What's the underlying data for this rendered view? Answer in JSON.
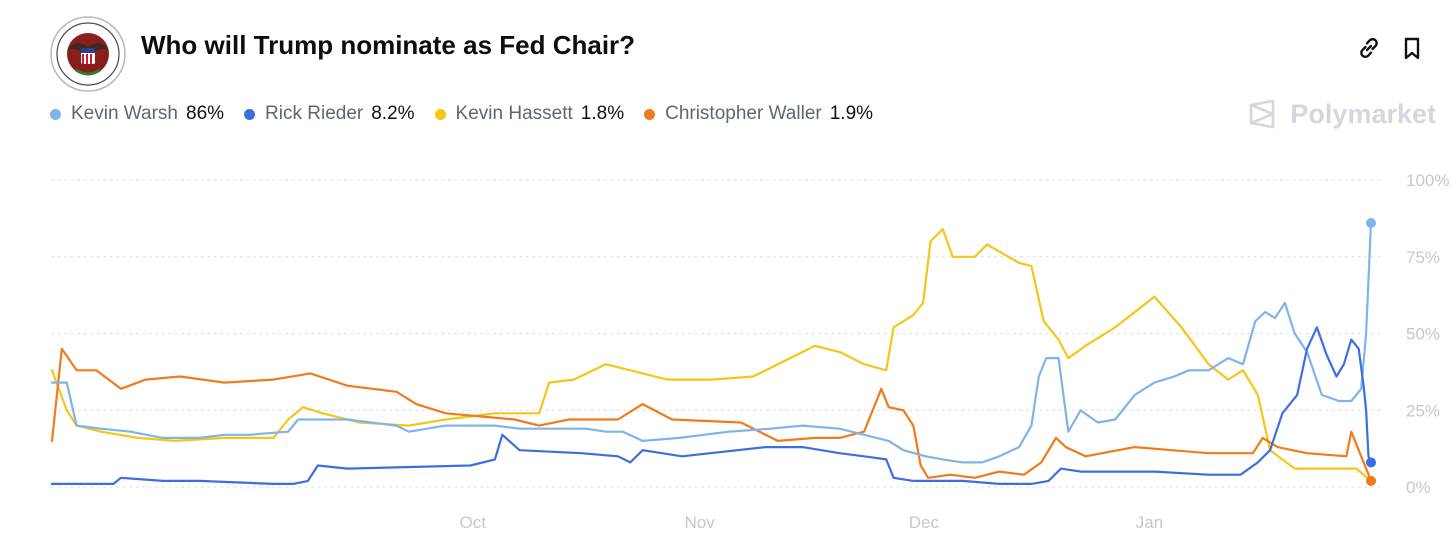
{
  "header": {
    "title": "Who will Trump nominate as Fed Chair?",
    "logo": "federal-reserve-seal",
    "icons": [
      "link-icon",
      "bookmark-icon"
    ]
  },
  "brand": {
    "name": "Polymarket",
    "icon": "polymarket-logo-icon"
  },
  "chart_data": {
    "type": "line",
    "title": "Who will Trump nominate as Fed Chair?",
    "x_ticks": [
      "Oct",
      "Nov",
      "Dec",
      "Jan"
    ],
    "y_ticks": [
      "100%",
      "75%",
      "50%",
      "25%",
      "0%"
    ],
    "ylim": [
      0,
      100
    ],
    "grid": true,
    "legend_position": "top-left",
    "series": [
      {
        "name": "Kevin Warsh",
        "value_label": "86%",
        "color": "#7fb4ea",
        "points": [
          [
            0,
            34
          ],
          [
            6,
            34
          ],
          [
            10,
            20
          ],
          [
            20,
            19
          ],
          [
            32,
            18
          ],
          [
            45,
            16
          ],
          [
            60,
            16
          ],
          [
            70,
            17
          ],
          [
            80,
            17
          ],
          [
            96,
            18
          ],
          [
            100,
            22
          ],
          [
            120,
            22
          ],
          [
            140,
            20
          ],
          [
            145,
            18
          ],
          [
            160,
            20
          ],
          [
            180,
            20
          ],
          [
            190,
            19
          ],
          [
            205,
            19
          ],
          [
            217,
            19
          ],
          [
            225,
            18
          ],
          [
            232,
            18
          ],
          [
            240,
            15
          ],
          [
            255,
            16
          ],
          [
            275,
            18
          ],
          [
            292,
            19
          ],
          [
            305,
            20
          ],
          [
            320,
            19
          ],
          [
            330,
            17
          ],
          [
            340,
            15
          ],
          [
            346,
            12
          ],
          [
            355,
            10
          ],
          [
            362,
            9
          ],
          [
            370,
            8
          ],
          [
            378,
            8
          ],
          [
            385,
            10
          ],
          [
            393,
            13
          ],
          [
            398,
            20
          ],
          [
            401,
            36
          ],
          [
            404,
            42
          ],
          [
            409,
            42
          ],
          [
            413,
            18
          ],
          [
            418,
            25
          ],
          [
            425,
            21
          ],
          [
            432,
            22
          ],
          [
            440,
            30
          ],
          [
            448,
            34
          ],
          [
            456,
            36
          ],
          [
            462,
            38
          ],
          [
            470,
            38
          ],
          [
            478,
            42
          ],
          [
            484,
            40
          ],
          [
            489,
            54
          ],
          [
            493,
            57
          ],
          [
            497,
            55
          ],
          [
            501,
            60
          ],
          [
            505,
            50
          ],
          [
            510,
            44
          ],
          [
            516,
            30
          ],
          [
            523,
            28
          ],
          [
            528,
            28
          ],
          [
            532,
            32
          ],
          [
            534,
            50
          ],
          [
            536,
            86
          ]
        ]
      },
      {
        "name": "Rick Rieder",
        "value_label": "8.2%",
        "color": "#3b6fe0",
        "points": [
          [
            0,
            1
          ],
          [
            25,
            1
          ],
          [
            28,
            3
          ],
          [
            45,
            2
          ],
          [
            60,
            2
          ],
          [
            90,
            1
          ],
          [
            98,
            1
          ],
          [
            104,
            2
          ],
          [
            108,
            7
          ],
          [
            120,
            6
          ],
          [
            170,
            7
          ],
          [
            180,
            9
          ],
          [
            183,
            17
          ],
          [
            190,
            12
          ],
          [
            215,
            11
          ],
          [
            230,
            10
          ],
          [
            235,
            8
          ],
          [
            240,
            12
          ],
          [
            256,
            10
          ],
          [
            290,
            13
          ],
          [
            305,
            13
          ],
          [
            320,
            11
          ],
          [
            330,
            10
          ],
          [
            339,
            9
          ],
          [
            342,
            3
          ],
          [
            350,
            2
          ],
          [
            370,
            2
          ],
          [
            385,
            1
          ],
          [
            398,
            1
          ],
          [
            405,
            2
          ],
          [
            410,
            6
          ],
          [
            418,
            5
          ],
          [
            430,
            5
          ],
          [
            448,
            5
          ],
          [
            470,
            4
          ],
          [
            483,
            4
          ],
          [
            490,
            8
          ],
          [
            495,
            12
          ],
          [
            500,
            24
          ],
          [
            506,
            30
          ],
          [
            510,
            45
          ],
          [
            514,
            52
          ],
          [
            518,
            43
          ],
          [
            522,
            36
          ],
          [
            525,
            40
          ],
          [
            528,
            48
          ],
          [
            531,
            45
          ],
          [
            533,
            33
          ],
          [
            534,
            25
          ],
          [
            535,
            10
          ],
          [
            536,
            8
          ]
        ]
      },
      {
        "name": "Kevin Hassett",
        "value_label": "1.8%",
        "color": "#f5c518",
        "points": [
          [
            0,
            38
          ],
          [
            6,
            25
          ],
          [
            10,
            20
          ],
          [
            20,
            18
          ],
          [
            35,
            16
          ],
          [
            50,
            15
          ],
          [
            70,
            16
          ],
          [
            90,
            16
          ],
          [
            96,
            22
          ],
          [
            102,
            26
          ],
          [
            110,
            24
          ],
          [
            125,
            21
          ],
          [
            145,
            20
          ],
          [
            160,
            22
          ],
          [
            180,
            24
          ],
          [
            198,
            24
          ],
          [
            202,
            34
          ],
          [
            212,
            35
          ],
          [
            225,
            40
          ],
          [
            250,
            35
          ],
          [
            268,
            35
          ],
          [
            285,
            36
          ],
          [
            300,
            42
          ],
          [
            310,
            46
          ],
          [
            320,
            44
          ],
          [
            330,
            40
          ],
          [
            339,
            38
          ],
          [
            342,
            52
          ],
          [
            350,
            56
          ],
          [
            354,
            60
          ],
          [
            357,
            80
          ],
          [
            362,
            84
          ],
          [
            366,
            75
          ],
          [
            375,
            75
          ],
          [
            380,
            79
          ],
          [
            393,
            73
          ],
          [
            398,
            72
          ],
          [
            403,
            54
          ],
          [
            409,
            48
          ],
          [
            413,
            42
          ],
          [
            420,
            46
          ],
          [
            432,
            52
          ],
          [
            448,
            62
          ],
          [
            459,
            52
          ],
          [
            470,
            40
          ],
          [
            478,
            35
          ],
          [
            484,
            38
          ],
          [
            490,
            30
          ],
          [
            495,
            12
          ],
          [
            505,
            6
          ],
          [
            520,
            6
          ],
          [
            530,
            6
          ],
          [
            536,
            2
          ]
        ]
      },
      {
        "name": "Christopher Waller",
        "value_label": "1.9%",
        "color": "#f27a1a",
        "points": [
          [
            0,
            15
          ],
          [
            4,
            45
          ],
          [
            10,
            38
          ],
          [
            18,
            38
          ],
          [
            28,
            32
          ],
          [
            38,
            35
          ],
          [
            52,
            36
          ],
          [
            70,
            34
          ],
          [
            90,
            35
          ],
          [
            105,
            37
          ],
          [
            120,
            33
          ],
          [
            140,
            31
          ],
          [
            148,
            27
          ],
          [
            160,
            24
          ],
          [
            188,
            22
          ],
          [
            198,
            20
          ],
          [
            210,
            22
          ],
          [
            230,
            22
          ],
          [
            240,
            27
          ],
          [
            252,
            22
          ],
          [
            280,
            21
          ],
          [
            295,
            15
          ],
          [
            310,
            16
          ],
          [
            320,
            16
          ],
          [
            330,
            18
          ],
          [
            337,
            32
          ],
          [
            340,
            26
          ],
          [
            346,
            25
          ],
          [
            350,
            20
          ],
          [
            353,
            7
          ],
          [
            356,
            3
          ],
          [
            365,
            4
          ],
          [
            375,
            3
          ],
          [
            385,
            5
          ],
          [
            395,
            4
          ],
          [
            402,
            8
          ],
          [
            408,
            16
          ],
          [
            412,
            13
          ],
          [
            420,
            10
          ],
          [
            440,
            13
          ],
          [
            455,
            12
          ],
          [
            470,
            11
          ],
          [
            488,
            11
          ],
          [
            492,
            16
          ],
          [
            498,
            13
          ],
          [
            510,
            11
          ],
          [
            526,
            10
          ],
          [
            528,
            18
          ],
          [
            532,
            10
          ],
          [
            536,
            2
          ]
        ]
      }
    ]
  }
}
